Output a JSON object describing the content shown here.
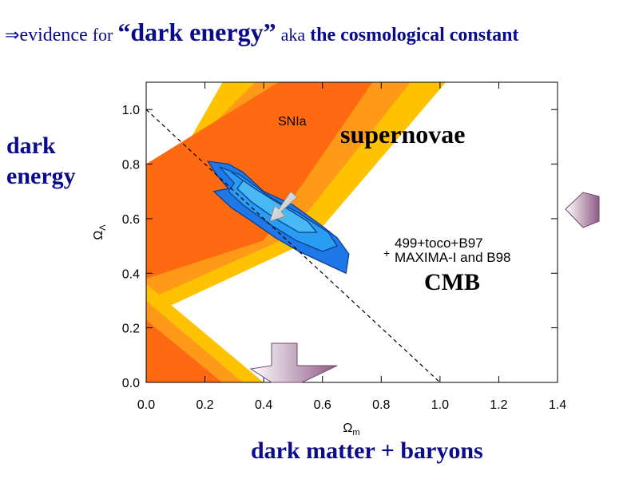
{
  "slide": {
    "headline": {
      "arrow": "⇒",
      "part1": "evidence",
      "part2": "for",
      "part3": "“dark energy”",
      "part4": "aka",
      "part5": "the",
      "part6": "cosmological constant"
    },
    "left_label_line1": "dark",
    "left_label_line2": "energy",
    "bottom_label": "dark matter + baryons"
  },
  "chart_data": {
    "type": "contour",
    "xlabel": "Ω_m",
    "ylabel": "Ω_Λ",
    "xlim": [
      0.0,
      1.4
    ],
    "ylim": [
      0.0,
      1.1
    ],
    "xticks": [
      "0.0",
      "0.2",
      "0.4",
      "0.6",
      "0.8",
      "1.0",
      "1.2",
      "1.4"
    ],
    "yticks": [
      "0.0",
      "0.2",
      "0.4",
      "0.6",
      "0.8",
      "1.0"
    ],
    "flat_universe_line": [
      [
        0.0,
        1.0
      ],
      [
        1.0,
        0.0
      ]
    ],
    "annotations": {
      "snia": "SNIa",
      "supernovae": "supernovae",
      "cmb_line1_prefix": "+",
      "cmb_line1": "499+toco+B97",
      "cmb_line2": "MAXIMA-I and B98",
      "cmb": "CMB"
    },
    "snia_bands": [
      {
        "level": "outer",
        "color": "#ffc200",
        "polygon": [
          [
            0.0,
            0.61
          ],
          [
            0.4,
            1.1
          ],
          [
            1.0,
            1.1
          ],
          [
            1.0,
            1.04
          ],
          [
            0.94,
            1.1
          ],
          [
            1.0,
            1.1
          ],
          [
            1.0,
            1.04
          ],
          [
            0.95,
            1.04
          ],
          [
            0.54,
            0.52
          ],
          [
            0.0,
            0.24
          ]
        ]
      },
      {
        "level": "middle",
        "color": "#ff9a18"
      },
      {
        "level": "inner",
        "color": "#ff6a10"
      }
    ],
    "cmb_contours": [
      {
        "level": "95%",
        "color": "#1f78e8"
      },
      {
        "level": "68%",
        "color": "#2a9df2"
      },
      {
        "level": "core",
        "color": "#49b9f5"
      }
    ],
    "arrows": {
      "best_fit_arrow": {
        "color": "#c8c8c8"
      },
      "right_arrow": {
        "color": "#8e5a86"
      },
      "bottom_arrow": {
        "color": "#8e5a86"
      }
    }
  }
}
